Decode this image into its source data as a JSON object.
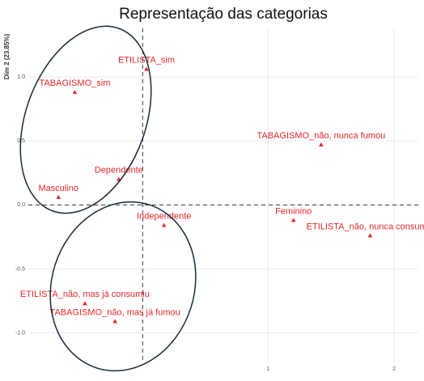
{
  "chart_data": {
    "type": "scatter",
    "title": "Representação das categorias",
    "y_label": "Dim 2 (23.85%)",
    "color": "#e3262b",
    "grid": true,
    "xlim": [
      -0.91,
      2.2
    ],
    "ylim": [
      -1.23,
      1.38
    ],
    "xticks": [
      1,
      2
    ],
    "yticks": [
      {
        "value": -1,
        "label": "-1.0"
      },
      {
        "value": -0.5,
        "label": "-0.5"
      },
      {
        "value": 0,
        "label": "0.0"
      },
      {
        "value": 0.5,
        "label": "0.5"
      },
      {
        "value": 1,
        "label": "1.0"
      }
    ],
    "labels": [
      "ETILISTA_sim",
      "TABAGISMO_sim",
      "TABAGISMO_não, nunca fumou",
      "Dependente",
      "Masculino",
      "Feminino",
      "Independente",
      "ETILISTA_não, nunca consumiu",
      "ETILISTA_não, mas já consumiu",
      "TABAGISMO_não, mas já fumou"
    ],
    "x": [
      0.03,
      -0.54,
      1.42,
      -0.19,
      -0.67,
      1.2,
      0.17,
      1.81,
      -0.46,
      -0.22
    ],
    "y": [
      1.06,
      0.88,
      0.47,
      0.2,
      0.06,
      -0.12,
      -0.16,
      -0.24,
      -0.77,
      -0.91
    ]
  }
}
